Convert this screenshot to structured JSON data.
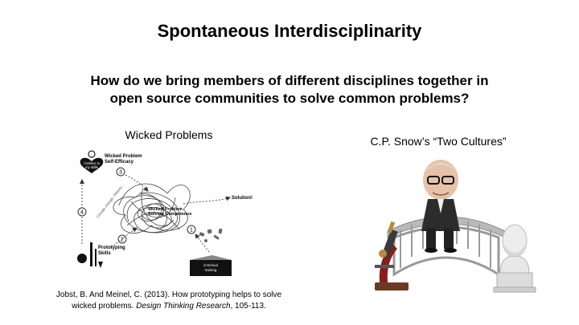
{
  "slide": {
    "title": "Spontaneous Interdisciplinarity",
    "question_line1": "How do we bring members of different disciplines together in",
    "question_line2": "open source communities to solve common problems?"
  },
  "left_panel": {
    "label": "Wicked Problems",
    "diagram": {
      "top_label_line1": "Wicked Problem",
      "top_label_line2": "Self-Efficacy",
      "heart_text_line1": "I believe in",
      "heart_text_line2": "my skills",
      "center_label_line1": "Wicked Problem",
      "center_label_line2": "Solving Competence",
      "solution_label": "Solution!",
      "climate_label": "Climate change, Obesity…",
      "prototyping_line1": "Prototyping",
      "prototyping_line2": "Skills",
      "training_line1": "d-School",
      "training_line2": "training",
      "step_1": "1",
      "step_2": "2",
      "step_3": "3",
      "step_4": "4"
    },
    "citation": {
      "line1": "Jobst, B. And Meinel, C. (2013). How prototyping helps to solve",
      "line2_prefix": "wicked problems. ",
      "journal": "Design Thinking Research",
      "line2_suffix": ", 105-113."
    }
  },
  "right_panel": {
    "label": "C.P. Snow’s “Two Cultures”"
  },
  "icons": {
    "wicked": [
      "heart-icon",
      "scribble-icon",
      "tools-icon",
      "training-box-icon"
    ],
    "snow": [
      "microscope-icon",
      "bust-icon",
      "bridge-icon",
      "man-figure-icon"
    ]
  }
}
